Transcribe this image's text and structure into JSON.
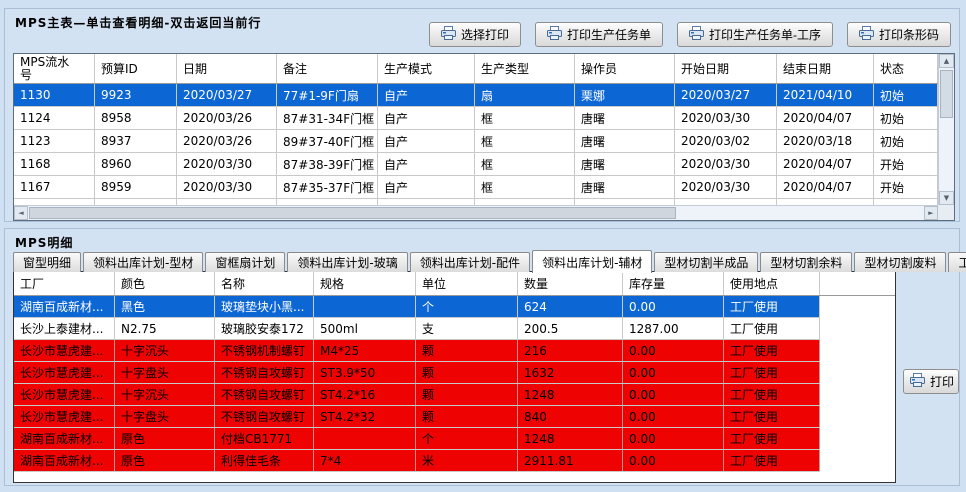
{
  "colors": {
    "page_bg": "#cfe0f2",
    "selected_row_bg": "#0c66d4",
    "alert_row_bg": "#ee0202",
    "selected_row_text": "#ffffff"
  },
  "main_panel": {
    "title": "MPS主表—单击查看明细-双击返回当前行",
    "buttons": [
      {
        "label": "选择打印"
      },
      {
        "label": "打印生产任务单"
      },
      {
        "label": "打印生产任务单-工序"
      },
      {
        "label": "打印条形码"
      }
    ],
    "table": {
      "columns": [
        "MPS流水号",
        "预算ID",
        "日期",
        "备注",
        "生产模式",
        "生产类型",
        "操作员",
        "开始日期",
        "结束日期",
        "状态"
      ],
      "rows": [
        {
          "state": "selected",
          "cells": [
            "1130",
            "9923",
            "2020/03/27",
            "77#1-9F门扇",
            "自产",
            "扇",
            "栗娜",
            "2020/03/27",
            "2021/04/10",
            "初始"
          ]
        },
        {
          "state": "normal",
          "cells": [
            "1124",
            "8958",
            "2020/03/26",
            "87#31-34F门框",
            "自产",
            "框",
            "唐曙",
            "2020/03/30",
            "2020/04/07",
            "初始"
          ]
        },
        {
          "state": "normal",
          "cells": [
            "1123",
            "8937",
            "2020/03/26",
            "89#37-40F门框",
            "自产",
            "框",
            "唐曙",
            "2020/03/02",
            "2020/03/18",
            "初始"
          ]
        },
        {
          "state": "normal",
          "cells": [
            "1168",
            "8960",
            "2020/03/30",
            "87#38-39F门框",
            "自产",
            "框",
            "唐曙",
            "2020/03/30",
            "2020/04/07",
            "开始"
          ]
        },
        {
          "state": "normal",
          "cells": [
            "1167",
            "8959",
            "2020/03/30",
            "87#35-37F门框",
            "自产",
            "框",
            "唐曙",
            "2020/03/30",
            "2020/04/07",
            "开始"
          ]
        },
        {
          "state": "partial",
          "cells": [
            "",
            "",
            "",
            "",
            "",
            "",
            "",
            "",
            "",
            ""
          ]
        }
      ]
    }
  },
  "detail_panel": {
    "title": "MPS明细",
    "tabs": [
      {
        "label": "窗型明细",
        "active": false
      },
      {
        "label": "领料出库计划-型材",
        "active": false
      },
      {
        "label": "窗框扇计划",
        "active": false
      },
      {
        "label": "领料出库计划-玻璃",
        "active": false
      },
      {
        "label": "领料出库计划-配件",
        "active": false
      },
      {
        "label": "领料出库计划-辅材",
        "active": true
      },
      {
        "label": "型材切割半成品",
        "active": false
      },
      {
        "label": "型材切割余料",
        "active": false
      },
      {
        "label": "型材切割废料",
        "active": false
      },
      {
        "label": "工序",
        "active": false
      }
    ],
    "print_button_label": "打印",
    "table": {
      "columns": [
        "工厂",
        "颜色",
        "名称",
        "规格",
        "单位",
        "数量",
        "库存量",
        "使用地点"
      ],
      "rows": [
        {
          "state": "selected",
          "cells": [
            "湖南百成新材...",
            "黑色",
            "玻璃垫块小黑...",
            "",
            "个",
            "624",
            "0.00",
            "工厂使用"
          ]
        },
        {
          "state": "normal",
          "cells": [
            "长沙上泰建材...",
            "N2.75",
            "玻璃胶安泰172",
            "500ml",
            "支",
            "200.5",
            "1287.00",
            "工厂使用"
          ]
        },
        {
          "state": "alert",
          "cells": [
            "长沙市慧虎建...",
            "十字沉头",
            "不锈钢机制螺钉",
            "M4*25",
            "颗",
            "216",
            "0.00",
            "工厂使用"
          ]
        },
        {
          "state": "alert",
          "cells": [
            "长沙市慧虎建...",
            "十字盘头",
            "不锈钢自攻螺钉",
            "ST3.9*50",
            "颗",
            "1632",
            "0.00",
            "工厂使用"
          ]
        },
        {
          "state": "alert",
          "cells": [
            "长沙市慧虎建...",
            "十字沉头",
            "不锈钢自攻螺钉",
            "ST4.2*16",
            "颗",
            "1248",
            "0.00",
            "工厂使用"
          ]
        },
        {
          "state": "alert",
          "cells": [
            "长沙市慧虎建...",
            "十字盘头",
            "不锈钢自攻螺钉",
            "ST4.2*32",
            "颗",
            "840",
            "0.00",
            "工厂使用"
          ]
        },
        {
          "state": "alert",
          "cells": [
            "湖南百成新材...",
            "原色",
            "付档CB1771",
            "",
            "个",
            "1248",
            "0.00",
            "工厂使用"
          ]
        },
        {
          "state": "alert",
          "cells": [
            "湖南百成新材...",
            "原色",
            "利得佳毛条",
            "7*4",
            "米",
            "2911.81",
            "0.00",
            "工厂使用"
          ]
        }
      ]
    }
  }
}
